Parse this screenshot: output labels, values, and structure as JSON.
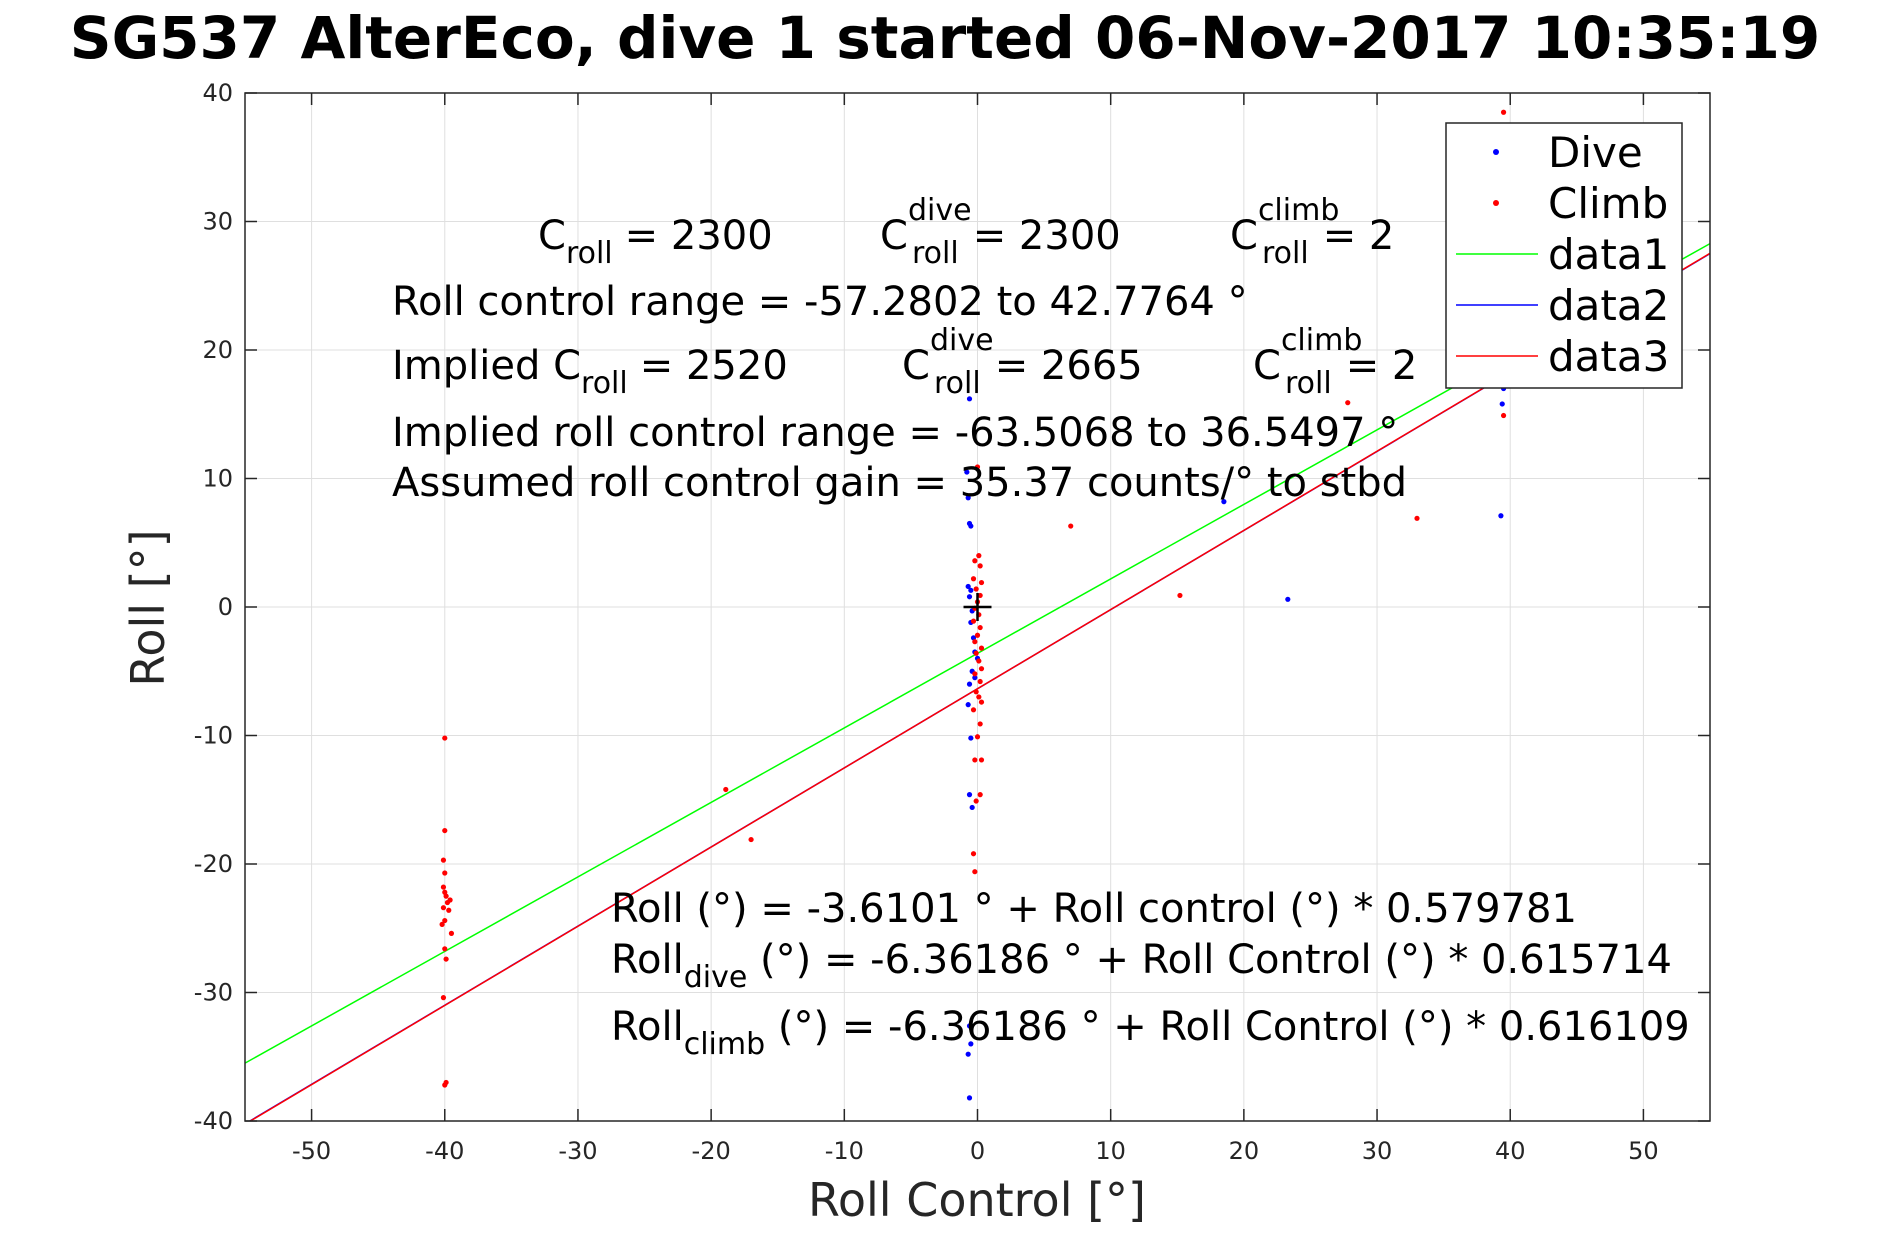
{
  "chart_data": {
    "type": "scatter",
    "title": "SG537 AlterEco, dive 1 started 06-Nov-2017 10:35:19",
    "xlabel": "Roll Control [°]",
    "ylabel": "Roll [°]",
    "xlim": [
      -55,
      55
    ],
    "ylim": [
      -40,
      40
    ],
    "grid": true,
    "x_ticks": [
      -50,
      -40,
      -30,
      -20,
      -10,
      0,
      10,
      20,
      30,
      40,
      50
    ],
    "y_ticks": [
      -40,
      -30,
      -20,
      -10,
      0,
      10,
      20,
      30,
      40
    ],
    "legend_position": "top-right",
    "series": [
      {
        "name": "Dive",
        "kind": "points",
        "color": "#0000ff",
        "points": [
          [
            -0.6,
            16.2
          ],
          [
            -0.8,
            10.5
          ],
          [
            -0.7,
            8.5
          ],
          [
            -0.6,
            6.5
          ],
          [
            -0.5,
            6.3
          ],
          [
            -0.7,
            1.6
          ],
          [
            -0.6,
            0.8
          ],
          [
            -0.5,
            1.3
          ],
          [
            -0.4,
            -0.3
          ],
          [
            -0.5,
            -1.2
          ],
          [
            -0.3,
            -2.4
          ],
          [
            -0.2,
            -3.5
          ],
          [
            0.0,
            -4.0
          ],
          [
            -0.4,
            -5.0
          ],
          [
            -0.2,
            -5.5
          ],
          [
            -0.6,
            -6.0
          ],
          [
            -0.7,
            -7.6
          ],
          [
            -0.5,
            -10.2
          ],
          [
            -0.6,
            -14.6
          ],
          [
            -0.4,
            -15.6
          ],
          [
            -0.6,
            -32.6
          ],
          [
            -0.5,
            -34.0
          ],
          [
            -0.7,
            -34.8
          ],
          [
            -0.6,
            -38.2
          ],
          [
            18.5,
            8.2
          ],
          [
            23.3,
            0.6
          ],
          [
            39.4,
            21.1
          ],
          [
            39.5,
            17.0
          ],
          [
            39.4,
            15.8
          ],
          [
            39.3,
            7.1
          ]
        ]
      },
      {
        "name": "Climb",
        "kind": "points",
        "color": "#ff0000",
        "points": [
          [
            -40.0,
            -10.2
          ],
          [
            -40.0,
            -17.4
          ],
          [
            -40.1,
            -19.7
          ],
          [
            -40.0,
            -20.7
          ],
          [
            -40.1,
            -21.8
          ],
          [
            -40.0,
            -22.2
          ],
          [
            -39.9,
            -22.5
          ],
          [
            -39.6,
            -22.8
          ],
          [
            -39.8,
            -23.0
          ],
          [
            -40.1,
            -23.4
          ],
          [
            -39.7,
            -23.6
          ],
          [
            -40.0,
            -24.4
          ],
          [
            -40.2,
            -24.7
          ],
          [
            -39.5,
            -25.4
          ],
          [
            -40.0,
            -26.6
          ],
          [
            -39.9,
            -27.4
          ],
          [
            -40.1,
            -30.4
          ],
          [
            -39.9,
            -37.0
          ],
          [
            -40.0,
            -37.2
          ],
          [
            -18.9,
            -14.2
          ],
          [
            -17.0,
            -18.1
          ],
          [
            7.0,
            6.3
          ],
          [
            15.2,
            0.9
          ],
          [
            0.0,
            10.9
          ],
          [
            0.1,
            4.0
          ],
          [
            -0.2,
            3.6
          ],
          [
            0.2,
            3.2
          ],
          [
            -0.3,
            2.2
          ],
          [
            0.3,
            1.9
          ],
          [
            -0.1,
            1.4
          ],
          [
            0.2,
            0.9
          ],
          [
            0.0,
            0.4
          ],
          [
            -0.2,
            -0.1
          ],
          [
            0.1,
            -0.6
          ],
          [
            -0.3,
            -1.1
          ],
          [
            0.2,
            -1.6
          ],
          [
            0.0,
            -2.2
          ],
          [
            -0.2,
            -2.7
          ],
          [
            0.3,
            -3.2
          ],
          [
            -0.1,
            -3.6
          ],
          [
            0.1,
            -4.2
          ],
          [
            0.3,
            -4.8
          ],
          [
            -0.2,
            -5.2
          ],
          [
            0.2,
            -5.8
          ],
          [
            -0.1,
            -6.6
          ],
          [
            0.1,
            -7.0
          ],
          [
            0.3,
            -7.4
          ],
          [
            -0.3,
            -8.0
          ],
          [
            0.2,
            -9.1
          ],
          [
            0.0,
            -10.1
          ],
          [
            -0.2,
            -11.9
          ],
          [
            0.3,
            -11.9
          ],
          [
            0.2,
            -14.6
          ],
          [
            -0.1,
            -15.1
          ],
          [
            -0.3,
            -19.2
          ],
          [
            -0.2,
            -20.6
          ],
          [
            27.8,
            15.9
          ],
          [
            33.0,
            6.9
          ],
          [
            39.5,
            38.5
          ],
          [
            39.5,
            14.9
          ]
        ]
      },
      {
        "name": "data1",
        "kind": "line",
        "color": "#00ff00",
        "intercept": -3.6101,
        "slope": 0.579781
      },
      {
        "name": "data2",
        "kind": "line",
        "color": "#0000ff",
        "intercept": -6.36186,
        "slope": 0.615714
      },
      {
        "name": "data3",
        "kind": "line",
        "color": "#ff0000",
        "intercept": -6.36186,
        "slope": 0.616109,
        "offset_note": ""
      }
    ],
    "centroid_marker": {
      "x": 0.0,
      "y": 0.0
    },
    "annotations": {
      "c_roll": {
        "base": "C",
        "sub": "roll",
        "value": "= 2300"
      },
      "c_roll_dive": {
        "base": "C",
        "sup": "dive",
        "sub": "roll",
        "value": "= 2300"
      },
      "c_roll_climb": {
        "base": "C",
        "sup": "climb",
        "sub": "roll",
        "value": "= 2"
      },
      "range": "Roll control range = -57.2802 to 42.7764 °",
      "implied_c_roll": {
        "prefix": "Implied C",
        "sub": "roll",
        "value": "= 2520"
      },
      "implied_c_roll_dive": {
        "base": "C",
        "sup": "dive",
        "sub": "roll",
        "value": "= 2665"
      },
      "implied_c_roll_climb": {
        "base": "C",
        "sup": "climb",
        "sub": "roll",
        "value": "= 2"
      },
      "implied_range": "Implied roll control range = -63.5068 to 36.5497 °",
      "gain": "Assumed roll control gain = 35.37 counts/° to stbd",
      "fit_all": "Roll (°) = -3.6101 ° + Roll control (°) * 0.579781",
      "fit_dive": {
        "base": "Roll",
        "sub": "dive",
        "rest": " (°) = -6.36186 ° + Roll Control (°) * 0.615714"
      },
      "fit_climb": {
        "base": "Roll",
        "sub": "climb",
        "rest": " (°) = -6.36186 ° + Roll Control (°) * 0.616109"
      }
    }
  }
}
